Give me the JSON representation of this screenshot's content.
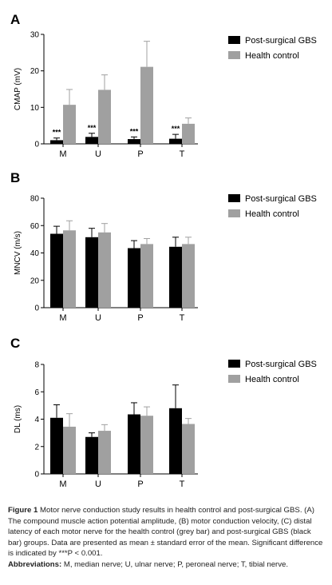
{
  "chart_data": [
    {
      "type": "bar",
      "panel_label": "A",
      "ylabel": "CMAP (mV)",
      "ylim": [
        0,
        30
      ],
      "yticks": [
        0,
        10,
        20,
        30
      ],
      "categories": [
        "M",
        "U",
        "P",
        "T"
      ],
      "series": [
        {
          "name": "Post-surgical GBS",
          "color": "#000000",
          "values": [
            1.0,
            1.9,
            1.3,
            1.4
          ],
          "errors": [
            0.6,
            1.0,
            0.6,
            1.2
          ]
        },
        {
          "name": "Health control",
          "color": "#a0a0a0",
          "values": [
            10.7,
            14.8,
            21.1,
            5.5
          ],
          "errors": [
            4.2,
            4.1,
            7.0,
            1.6
          ]
        }
      ],
      "annotations": [
        "***",
        "***",
        "***",
        "***"
      ],
      "legend": "top-right"
    },
    {
      "type": "bar",
      "panel_label": "B",
      "ylabel": "MNCV (m/s)",
      "ylim": [
        0,
        80
      ],
      "yticks": [
        0,
        20,
        40,
        60,
        80
      ],
      "categories": [
        "M",
        "U",
        "P",
        "T"
      ],
      "series": [
        {
          "name": "Post-surgical GBS",
          "color": "#000000",
          "values": [
            54,
            51.5,
            43.5,
            44.5
          ],
          "errors": [
            5.5,
            6.5,
            5.5,
            7.0
          ]
        },
        {
          "name": "Health control",
          "color": "#a0a0a0",
          "values": [
            56.5,
            55,
            46.5,
            46.5
          ],
          "errors": [
            7.0,
            6.5,
            4.0,
            5.0
          ]
        }
      ],
      "legend": "top-right"
    },
    {
      "type": "bar",
      "panel_label": "C",
      "ylabel": "DL (ms)",
      "ylim": [
        0,
        8
      ],
      "yticks": [
        0,
        2,
        4,
        6,
        8
      ],
      "categories": [
        "M",
        "U",
        "P",
        "T"
      ],
      "series": [
        {
          "name": "Post-surgical GBS",
          "color": "#000000",
          "values": [
            4.1,
            2.7,
            4.35,
            4.8
          ],
          "errors": [
            0.95,
            0.3,
            0.85,
            1.7
          ]
        },
        {
          "name": "Health control",
          "color": "#a0a0a0",
          "values": [
            3.45,
            3.15,
            4.25,
            3.65
          ],
          "errors": [
            0.95,
            0.45,
            0.65,
            0.4
          ]
        }
      ],
      "legend": "top-right"
    }
  ],
  "caption": {
    "label": "Figure 1",
    "text": " Motor nerve conduction study results in health control and post-surgical GBS. (A) The compound muscle action potential amplitude, (B) motor conduction velocity, (C) distal latency of each motor nerve for the health control (grey bar) and post-surgical GBS (black bar) groups. Data are presented as mean ± standard error of the mean. Significant difference is indicated by ***P < 0.001.",
    "abbreviations_label": "Abbreviations:",
    "abbreviations_text": " M, median nerve; U, ulnar nerve; P, peroneal nerve; T, tibial nerve."
  }
}
